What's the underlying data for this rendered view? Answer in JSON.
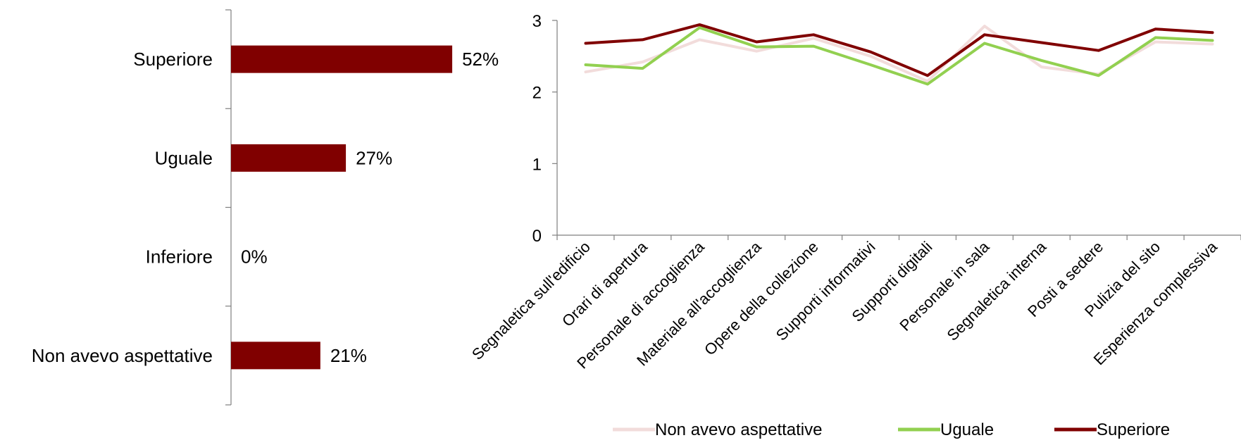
{
  "chart_data": [
    {
      "type": "bar",
      "orientation": "horizontal",
      "categories": [
        "Superiore",
        "Uguale",
        "Inferiore",
        "Non avevo aspettative"
      ],
      "values": [
        52,
        27,
        0,
        21
      ],
      "data_labels": [
        "52%",
        "27%",
        "0%",
        "21%"
      ],
      "xlim": [
        0,
        100
      ],
      "colors": {
        "bar": "#800000"
      }
    },
    {
      "type": "line",
      "categories": [
        "Segnaletica sull'edificio",
        "Orari di apertura",
        "Personale di accoglienza",
        "Materiale all'accoglienza",
        "Opere della collezione",
        "Supporti informativi",
        "Supporti digitali",
        "Personale in sala",
        "Segnaletica interna",
        "Posti a sedere",
        "Pulizia del sito",
        "Esperienza complessiva"
      ],
      "ylim": [
        0,
        3
      ],
      "yticks": [
        "0",
        "1",
        "2",
        "3"
      ],
      "grid": false,
      "legend_position": "bottom",
      "series": [
        {
          "name": "Non avevo aspettative",
          "color": "#f2dcdb",
          "values": [
            2.28,
            2.42,
            2.73,
            2.57,
            2.75,
            2.5,
            2.15,
            2.92,
            2.35,
            2.25,
            2.7,
            2.67
          ]
        },
        {
          "name": "Uguale",
          "color": "#92d050",
          "values": [
            2.38,
            2.33,
            2.9,
            2.63,
            2.64,
            2.38,
            2.11,
            2.68,
            2.44,
            2.23,
            2.76,
            2.72
          ]
        },
        {
          "name": "Superiore",
          "color": "#800000",
          "values": [
            2.68,
            2.73,
            2.94,
            2.7,
            2.8,
            2.56,
            2.23,
            2.8,
            2.69,
            2.58,
            2.88,
            2.83
          ]
        }
      ]
    }
  ]
}
